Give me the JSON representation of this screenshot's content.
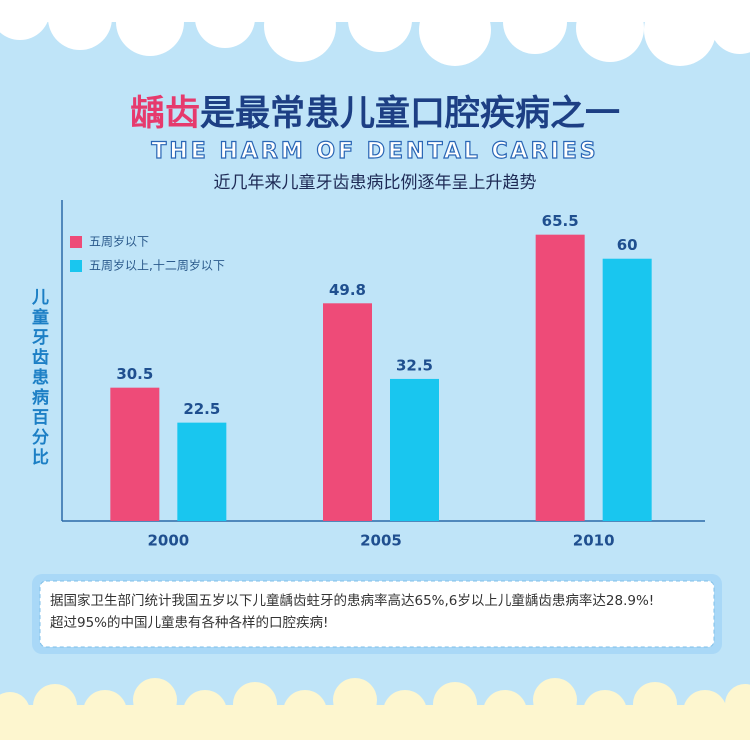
{
  "chart_data": {
    "type": "bar",
    "title_highlight": "龋齿",
    "title": "是最常患儿童口腔疾病之一",
    "subtitle_en": "THE HARM OF DENTAL CARIES",
    "subtitle": "近几年来儿童牙齿患病比例逐年呈上升趋势",
    "y_label": "儿童牙齿患病百分比",
    "categories": [
      "2000",
      "2005",
      "2010"
    ],
    "series": [
      {
        "name": "五周岁以下",
        "color": "#ee4b78",
        "values": [
          30.5,
          49.8,
          65.5
        ]
      },
      {
        "name": "五周岁以上,十二周岁以下",
        "color": "#19c6ef",
        "values": [
          22.5,
          32.5,
          60
        ]
      }
    ],
    "ylim": [
      0,
      70
    ],
    "note": [
      "据国家卫生部门统计我国五岁以下儿童龋齿蛀牙的患病率高达65%,6岁以上儿童龋齿患病率达28.9%!",
      "超过95%的中国儿童患有各种各样的口腔疾病!"
    ]
  }
}
